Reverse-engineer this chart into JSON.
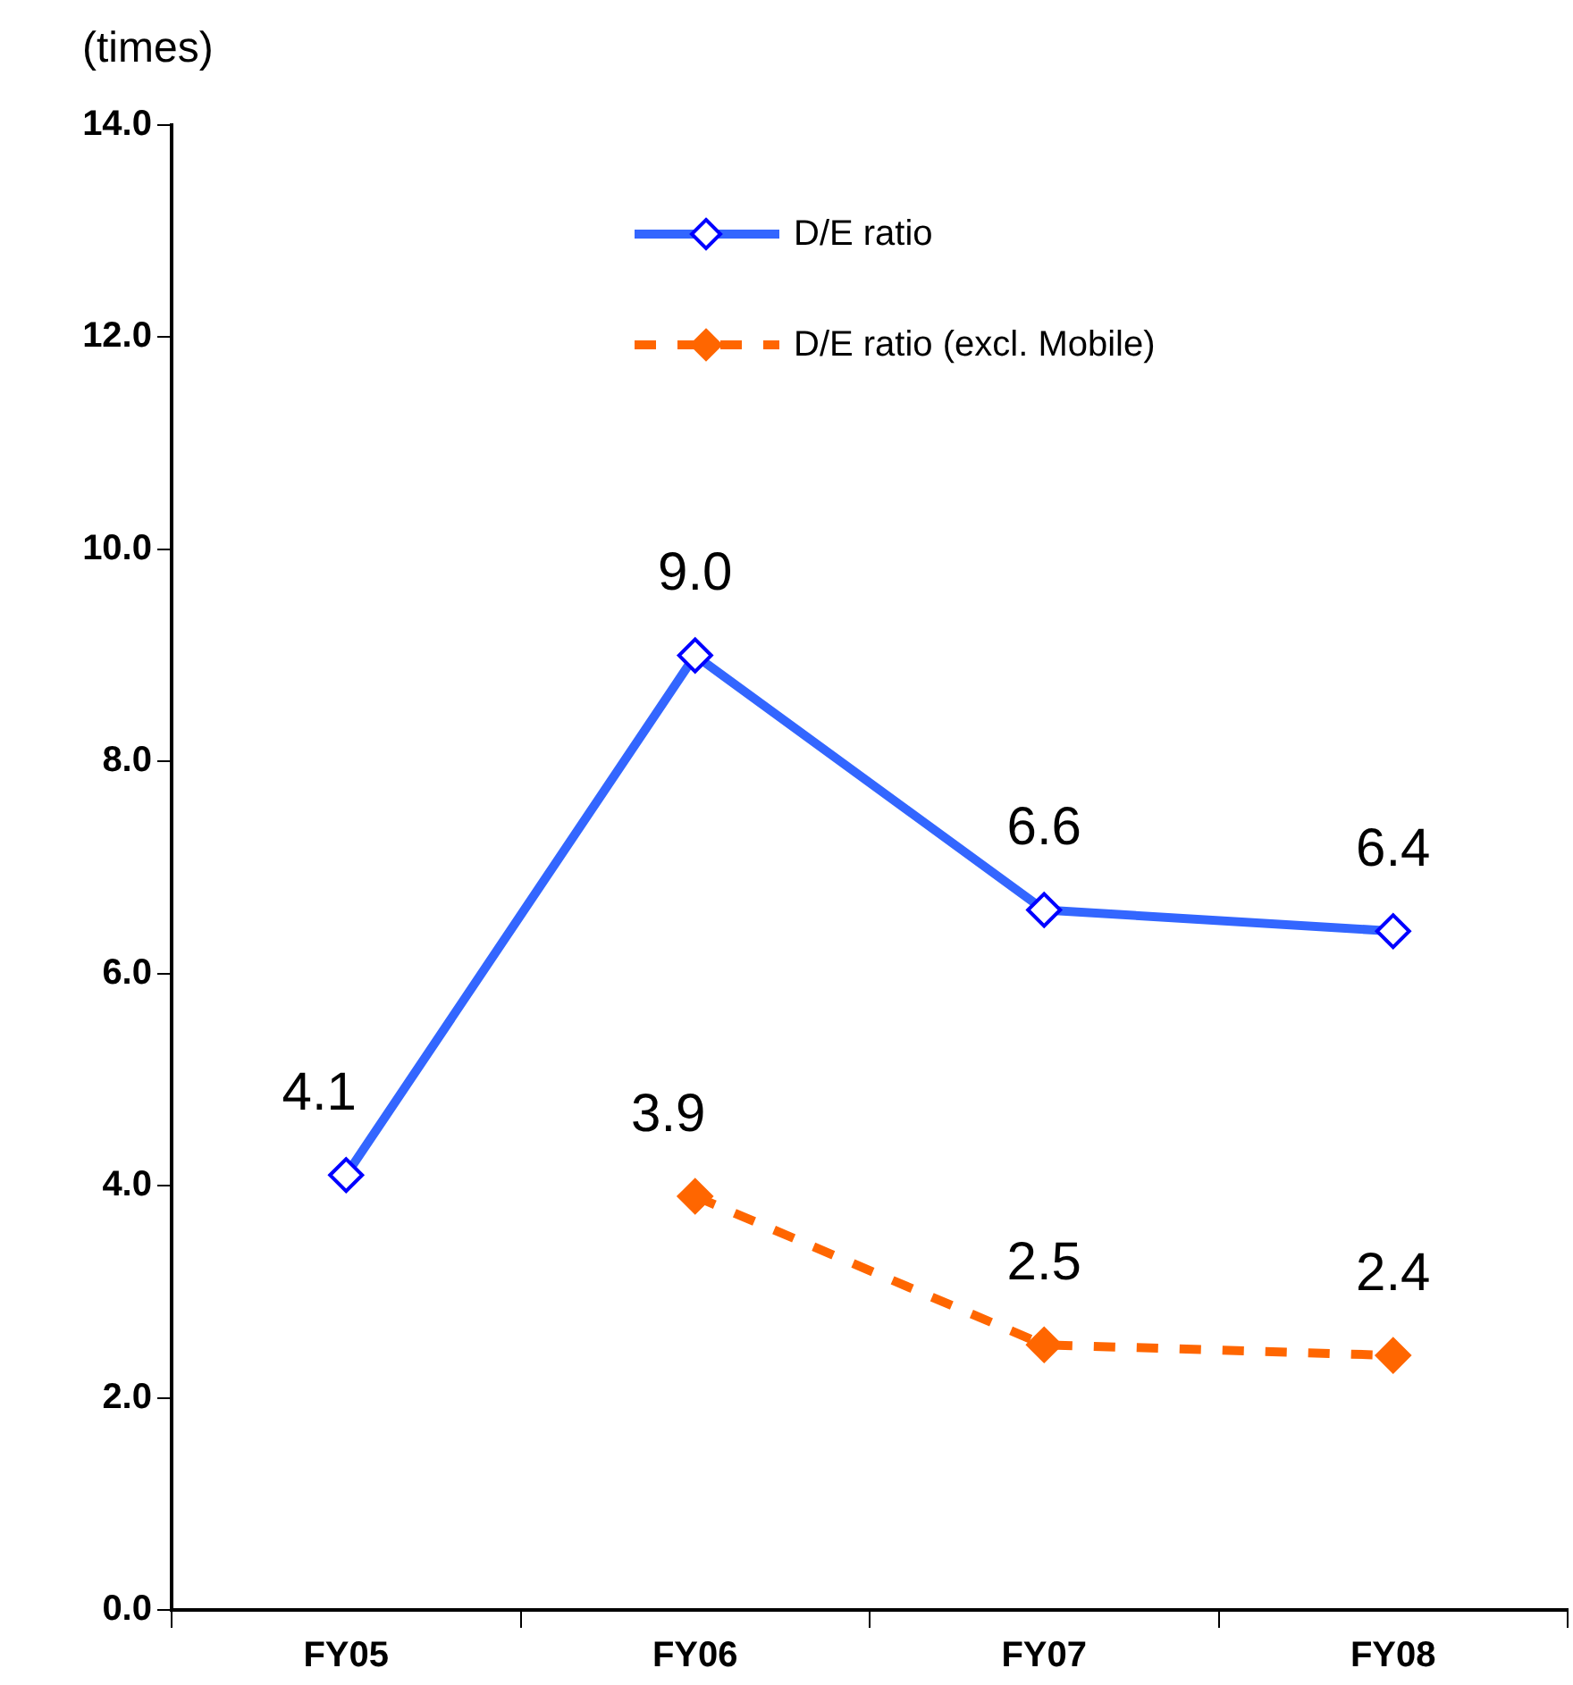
{
  "chart_data": {
    "type": "line",
    "ylabel": "(times)",
    "categories": [
      "FY05",
      "FY06",
      "FY07",
      "FY08"
    ],
    "series": [
      {
        "name": "D/E ratio",
        "color": "#3366ff",
        "values": [
          4.1,
          9.0,
          6.6,
          6.4
        ],
        "value_labels": [
          "4.1",
          "9.0",
          "6.6",
          "6.4"
        ],
        "line_style": "solid"
      },
      {
        "name": "D/E ratio (excl. Mobile)",
        "color": "#ff6600",
        "values": [
          null,
          3.9,
          2.5,
          2.4
        ],
        "value_labels": [
          null,
          "3.9",
          "2.5",
          "2.4"
        ],
        "line_style": "dashed"
      }
    ],
    "ylim": [
      0,
      14
    ],
    "yticks": [
      {
        "value": 0,
        "label": "0.0"
      },
      {
        "value": 2,
        "label": "2.0"
      },
      {
        "value": 4,
        "label": "4.0"
      },
      {
        "value": 6,
        "label": "6.0"
      },
      {
        "value": 8,
        "label": "8.0"
      },
      {
        "value": 10,
        "label": "10.0"
      },
      {
        "value": 12,
        "label": "12.0"
      },
      {
        "value": 14,
        "label": "14.0"
      }
    ],
    "grid": false,
    "legend": "top",
    "marker": "diamond"
  }
}
